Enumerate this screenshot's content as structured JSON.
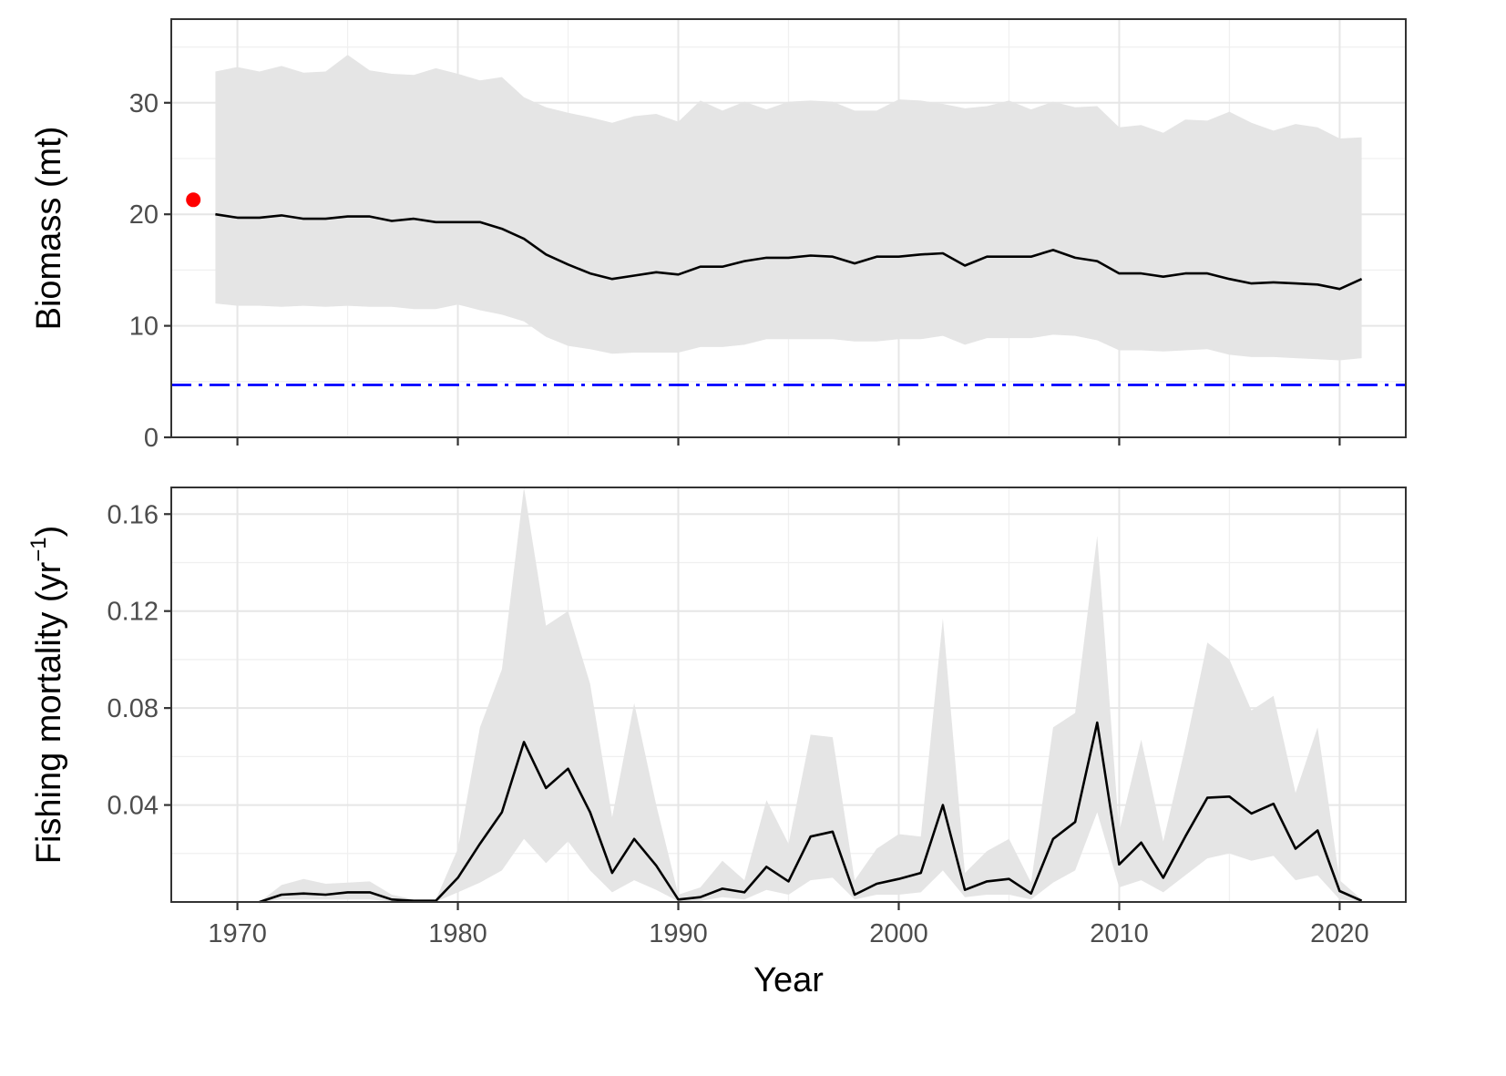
{
  "chart_data": [
    {
      "type": "line",
      "ylabel": "Biomass (mt)",
      "xlim": [
        1967,
        2023
      ],
      "ylim": [
        0,
        37.5
      ],
      "y_ticks": [
        0,
        10,
        20,
        30
      ],
      "y_tick_labels": [
        "0",
        "10",
        "20",
        "30"
      ],
      "grid": true,
      "x": [
        1969,
        1970,
        1971,
        1972,
        1973,
        1974,
        1975,
        1976,
        1977,
        1978,
        1979,
        1980,
        1981,
        1982,
        1983,
        1984,
        1985,
        1986,
        1987,
        1988,
        1989,
        1990,
        1991,
        1992,
        1993,
        1994,
        1995,
        1996,
        1997,
        1998,
        1999,
        2000,
        2001,
        2002,
        2003,
        2004,
        2005,
        2006,
        2007,
        2008,
        2009,
        2010,
        2011,
        2012,
        2013,
        2014,
        2015,
        2016,
        2017,
        2018,
        2019,
        2020,
        2021
      ],
      "series": [
        {
          "values": [
            20.0,
            19.7,
            19.7,
            19.9,
            19.6,
            19.6,
            19.8,
            19.8,
            19.4,
            19.6,
            19.3,
            19.3,
            19.3,
            18.7,
            17.8,
            16.4,
            15.5,
            14.7,
            14.2,
            14.5,
            14.8,
            14.6,
            15.3,
            15.3,
            15.8,
            16.1,
            16.1,
            16.3,
            16.2,
            15.6,
            16.2,
            16.2,
            16.4,
            16.5,
            15.4,
            16.2,
            16.2,
            16.2,
            16.8,
            16.1,
            15.8,
            14.7,
            14.7,
            14.4,
            14.7,
            14.7,
            14.2,
            13.8,
            13.9,
            13.8,
            13.7,
            13.3,
            14.2
          ],
          "upper": [
            32.8,
            33.2,
            32.8,
            33.3,
            32.7,
            32.8,
            34.3,
            32.9,
            32.6,
            32.5,
            33.1,
            32.6,
            32.0,
            32.3,
            30.5,
            29.6,
            29.1,
            28.7,
            28.2,
            28.8,
            29.0,
            28.3,
            30.2,
            29.3,
            30.1,
            29.4,
            30.1,
            30.2,
            30.1,
            29.3,
            29.3,
            30.3,
            30.2,
            29.9,
            29.5,
            29.7,
            30.2,
            29.4,
            30.1,
            29.6,
            29.7,
            27.8,
            28.0,
            27.3,
            28.5,
            28.4,
            29.2,
            28.2,
            27.5,
            28.1,
            27.8,
            26.8,
            26.9
          ],
          "lower": [
            12.0,
            11.8,
            11.8,
            11.7,
            11.8,
            11.7,
            11.8,
            11.7,
            11.7,
            11.5,
            11.5,
            11.9,
            11.4,
            11.0,
            10.4,
            9.0,
            8.2,
            7.9,
            7.5,
            7.6,
            7.6,
            7.6,
            8.1,
            8.1,
            8.3,
            8.8,
            8.8,
            8.8,
            8.8,
            8.6,
            8.6,
            8.8,
            8.8,
            9.1,
            8.3,
            8.9,
            8.9,
            8.9,
            9.2,
            9.1,
            8.7,
            7.8,
            7.8,
            7.7,
            7.8,
            7.9,
            7.4,
            7.2,
            7.2,
            7.1,
            7.0,
            6.9,
            7.1
          ]
        }
      ],
      "reference_line": {
        "y": 4.7,
        "color": "#0000ff",
        "style": "dash-dot"
      },
      "point": {
        "x": 1968,
        "y": 21.3,
        "color": "#ff0000"
      }
    },
    {
      "type": "line",
      "ylabel": "Fishing mortality (yr",
      "ylabel_superscript": "−1",
      "ylabel_close": ")",
      "xlabel": "Year",
      "xlim": [
        1967,
        2023
      ],
      "ylim": [
        0,
        0.171
      ],
      "x_ticks": [
        1970,
        1980,
        1990,
        2000,
        2010,
        2020
      ],
      "x_tick_labels": [
        "1970",
        "1980",
        "1990",
        "2000",
        "2010",
        "2020"
      ],
      "y_ticks": [
        0.04,
        0.08,
        0.12,
        0.16
      ],
      "y_tick_labels": [
        "0.04",
        "0.08",
        "0.12",
        "0.16"
      ],
      "grid": true,
      "x": [
        1971,
        1972,
        1973,
        1974,
        1975,
        1976,
        1977,
        1978,
        1979,
        1980,
        1981,
        1982,
        1983,
        1984,
        1985,
        1986,
        1987,
        1988,
        1989,
        1990,
        1991,
        1992,
        1993,
        1994,
        1995,
        1996,
        1997,
        1998,
        1999,
        2000,
        2001,
        2002,
        2003,
        2004,
        2005,
        2006,
        2007,
        2008,
        2009,
        2010,
        2011,
        2012,
        2013,
        2014,
        2015,
        2016,
        2017,
        2018,
        2019,
        2020,
        2021
      ],
      "series": [
        {
          "values": [
            0.0,
            0.003,
            0.0035,
            0.003,
            0.004,
            0.004,
            0.001,
            0.0005,
            0.0005,
            0.01,
            0.024,
            0.037,
            0.066,
            0.047,
            0.055,
            0.037,
            0.012,
            0.026,
            0.015,
            0.001,
            0.002,
            0.0055,
            0.004,
            0.0145,
            0.0085,
            0.027,
            0.029,
            0.003,
            0.0075,
            0.0095,
            0.012,
            0.04,
            0.005,
            0.0085,
            0.0095,
            0.0035,
            0.026,
            0.033,
            0.074,
            0.0155,
            0.0245,
            0.01,
            0.027,
            0.043,
            0.0435,
            0.0365,
            0.0405,
            0.022,
            0.0295,
            0.0045,
            0.0005
          ],
          "upper": [
            0.0,
            0.007,
            0.0095,
            0.0075,
            0.008,
            0.0085,
            0.003,
            0.001,
            0.001,
            0.022,
            0.072,
            0.096,
            0.171,
            0.114,
            0.12,
            0.09,
            0.035,
            0.082,
            0.04,
            0.003,
            0.006,
            0.017,
            0.009,
            0.042,
            0.024,
            0.069,
            0.068,
            0.009,
            0.022,
            0.028,
            0.027,
            0.117,
            0.012,
            0.021,
            0.026,
            0.008,
            0.072,
            0.078,
            0.151,
            0.029,
            0.067,
            0.025,
            0.064,
            0.107,
            0.1,
            0.079,
            0.085,
            0.045,
            0.072,
            0.009,
            0.001
          ],
          "lower": [
            0.0,
            0.001,
            0.001,
            0.001,
            0.001,
            0.001,
            0.0002,
            0.0001,
            0.0001,
            0.004,
            0.008,
            0.013,
            0.026,
            0.016,
            0.025,
            0.013,
            0.004,
            0.009,
            0.005,
            0.0003,
            0.0005,
            0.002,
            0.001,
            0.005,
            0.003,
            0.009,
            0.01,
            0.001,
            0.003,
            0.003,
            0.004,
            0.013,
            0.002,
            0.003,
            0.003,
            0.001,
            0.008,
            0.013,
            0.037,
            0.006,
            0.009,
            0.004,
            0.011,
            0.018,
            0.02,
            0.017,
            0.019,
            0.009,
            0.011,
            0.001,
            0.0002
          ]
        }
      ]
    }
  ]
}
